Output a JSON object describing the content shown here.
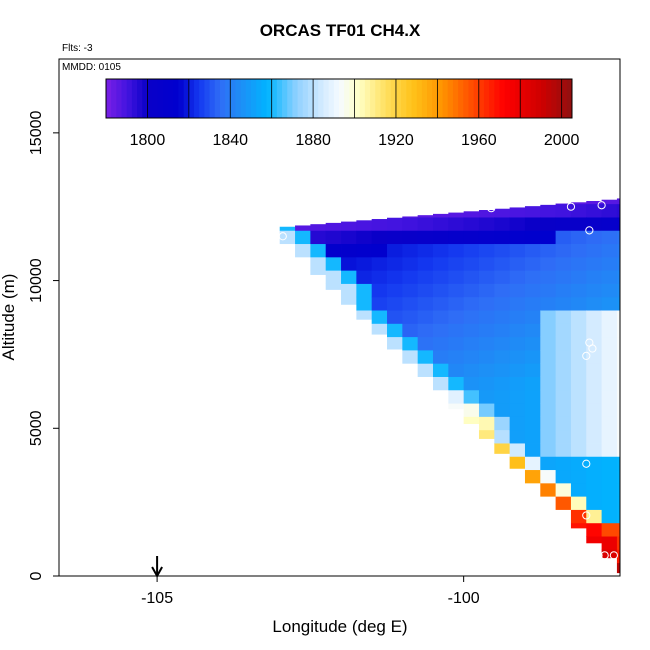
{
  "chart_data": {
    "type": "heatmap",
    "title": "ORCAS TF01 CH4.X",
    "xlabel": "Longitude (deg E)",
    "ylabel": "Altitude (m)",
    "xlim": [
      -106.6,
      -97.45
    ],
    "ylim": [
      0,
      17500
    ],
    "x_ticks": [
      -105,
      -100
    ],
    "x_tick_labels": [
      "-105",
      "-100"
    ],
    "y_ticks": [
      0,
      5000,
      10000,
      15000
    ],
    "y_tick_labels": [
      "0",
      "5000",
      "10000",
      "15000"
    ],
    "annotations": {
      "flights": "Flts: -3",
      "mmdd": "MMDD: 0105"
    },
    "colorbar": {
      "min": 1780,
      "max": 2005,
      "tick_values": [
        1800,
        1840,
        1880,
        1920,
        1960,
        2000
      ],
      "tick_labels": [
        "1800",
        "1840",
        "1880",
        "1920",
        "1960",
        "2000"
      ],
      "bin_edges": [
        1780,
        1800,
        1820,
        1840,
        1860,
        1880,
        1900,
        1920,
        1940,
        1960,
        1980,
        2000,
        2005
      ],
      "palette": [
        {
          "value": 1780,
          "color": "#7b1fe6"
        },
        {
          "value": 1790,
          "color": "#4414e0"
        },
        {
          "value": 1800,
          "color": "#0a00c8"
        },
        {
          "value": 1815,
          "color": "#0000ce"
        },
        {
          "value": 1825,
          "color": "#1438f0"
        },
        {
          "value": 1835,
          "color": "#2f6df6"
        },
        {
          "value": 1845,
          "color": "#1e8ef6"
        },
        {
          "value": 1858,
          "color": "#00b4ff"
        },
        {
          "value": 1872,
          "color": "#8fd0ff"
        },
        {
          "value": 1885,
          "color": "#d6ecff"
        },
        {
          "value": 1893,
          "color": "#f6fbff"
        },
        {
          "value": 1902,
          "color": "#ffffc6"
        },
        {
          "value": 1915,
          "color": "#ffe060"
        },
        {
          "value": 1928,
          "color": "#ffc21a"
        },
        {
          "value": 1942,
          "color": "#ff9500"
        },
        {
          "value": 1956,
          "color": "#ff5000"
        },
        {
          "value": 1972,
          "color": "#ff0000"
        },
        {
          "value": 1990,
          "color": "#cf0000"
        },
        {
          "value": 2005,
          "color": "#901010"
        }
      ]
    },
    "heatmap": {
      "x_cell_width_deg": 0.25,
      "alt_cell_height_m": 450,
      "lon_start": -103.0,
      "lon_end": -97.45,
      "lower_edge_start": [
        -103.0,
        11600
      ],
      "lower_edge_end": [
        -97.55,
        600
      ],
      "top_edge_start": [
        -103.0,
        11800
      ],
      "top_edge_end": [
        -97.55,
        12750
      ],
      "notes": "Wedge-shaped methane field: ~1780-1800 ppb near 12 km, ~1830-1870 ppb mid troposphere, rising to 1960-2000 ppb near the surface."
    },
    "observations": [
      {
        "lon": -102.95,
        "alt": 11500
      },
      {
        "lon": -99.55,
        "alt": 12450
      },
      {
        "lon": -98.25,
        "alt": 12500
      },
      {
        "lon": -97.75,
        "alt": 12550
      },
      {
        "lon": -97.95,
        "alt": 11700
      },
      {
        "lon": -97.95,
        "alt": 7900
      },
      {
        "lon": -97.9,
        "alt": 7700
      },
      {
        "lon": -98.0,
        "alt": 7450
      },
      {
        "lon": -98.0,
        "alt": 3800
      },
      {
        "lon": -98.0,
        "alt": 2050
      },
      {
        "lon": -97.95,
        "alt": 700
      },
      {
        "lon": -97.95,
        "alt": 650
      },
      {
        "lon": -97.8,
        "alt": 700
      },
      {
        "lon": -97.7,
        "alt": 700
      },
      {
        "lon": -97.55,
        "alt": 700
      }
    ],
    "arrow_marker": {
      "lon": -105.0,
      "alt": 0
    }
  }
}
